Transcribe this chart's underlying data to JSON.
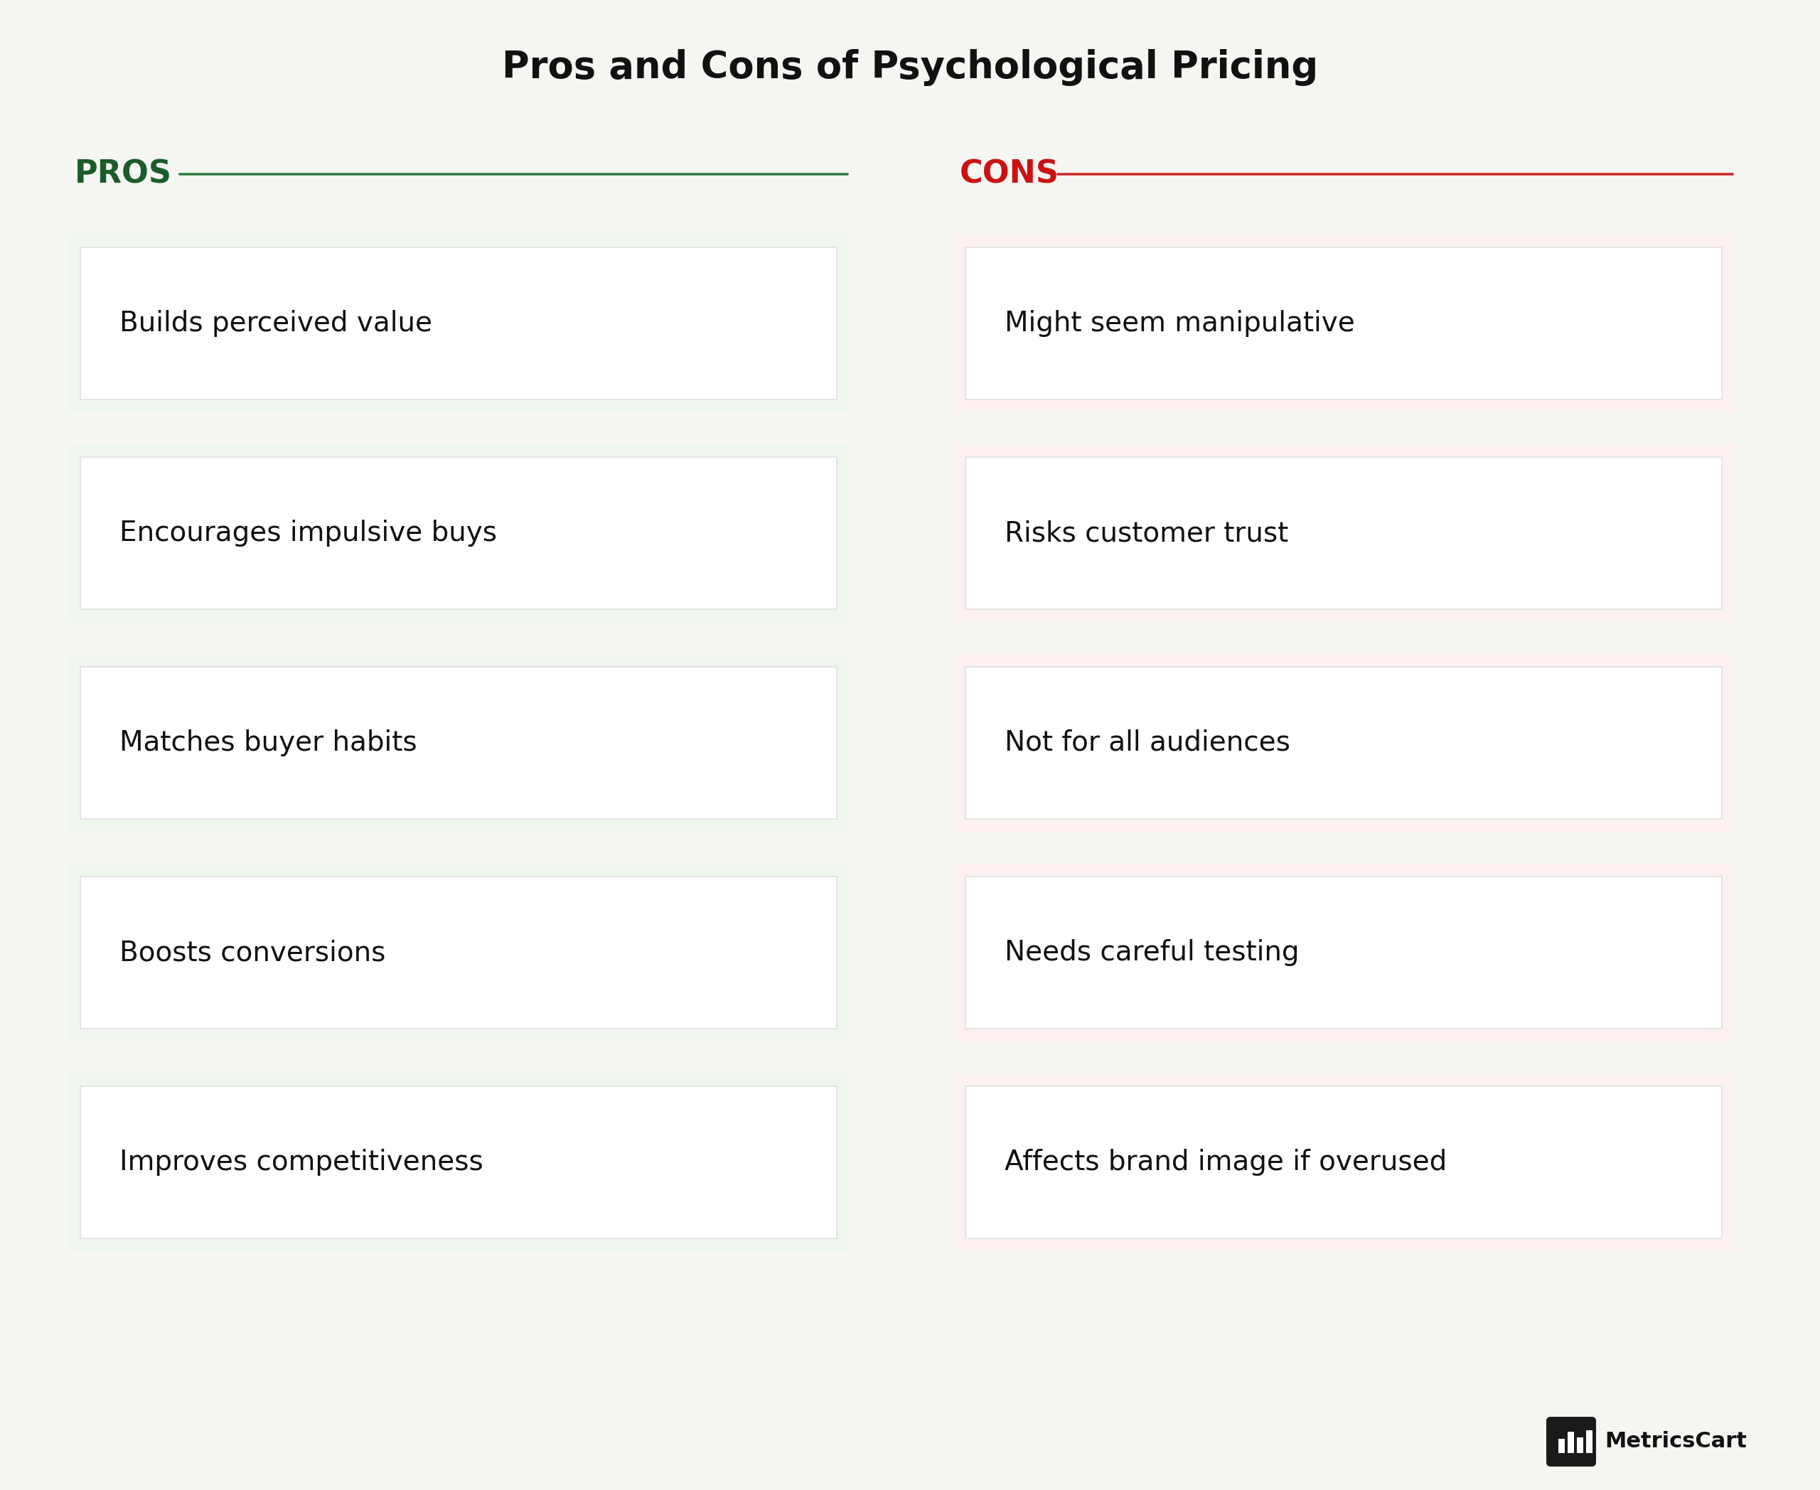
{
  "title": "Pros and Cons of Psychological Pricing",
  "title_fontsize": 38,
  "title_color": "#111111",
  "background_color": "#f5f5f2",
  "pros_label": "PROS",
  "cons_label": "CONS",
  "pros_color": "#1a5c2a",
  "cons_color": "#cc1111",
  "pros_line_color": "#2d7a3a",
  "cons_line_color": "#cc2222",
  "pros_items": [
    "Builds perceived value",
    "Encourages impulsive buys",
    "Matches buyer habits",
    "Boosts conversions",
    "Improves competitiveness"
  ],
  "cons_items": [
    "Might seem manipulative",
    "Risks customer trust",
    "Not for all audiences",
    "Needs careful testing",
    "Affects brand image if overused"
  ],
  "pros_outer_bg": "#eef6ee",
  "cons_outer_bg": "#fdf0f0",
  "pros_inner_bg": "#ffffff",
  "cons_inner_bg": "#ffffff",
  "box_edge_color": "#e0e0e0",
  "item_text_color": "#111111",
  "item_fontsize": 28,
  "header_fontsize": 32,
  "logo_text": "MetricsCart",
  "logo_fontsize": 22
}
